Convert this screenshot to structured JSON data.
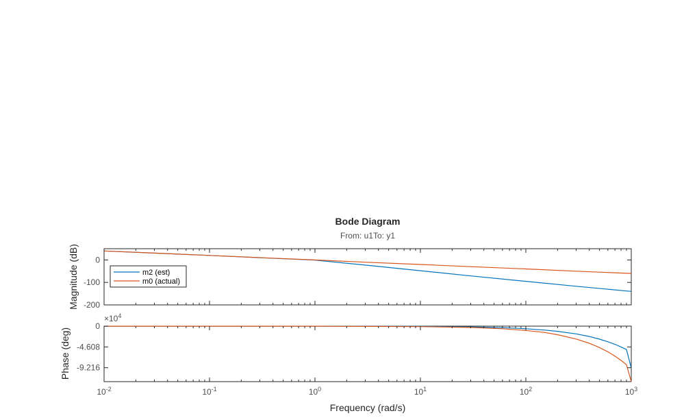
{
  "chart_data": {
    "type": "line",
    "title": "Bode Diagram",
    "subtitle": {
      "from_label": "From: u1",
      "to_label": "To: y1"
    },
    "xlabel": "Frequency (rad/s)",
    "xscale": "log",
    "xlim": [
      0.01,
      1000
    ],
    "x_ticks": [
      {
        "value": 0.01,
        "base": "10",
        "exp": "-2"
      },
      {
        "value": 0.1,
        "base": "10",
        "exp": "-1"
      },
      {
        "value": 1,
        "base": "10",
        "exp": "0"
      },
      {
        "value": 10,
        "base": "10",
        "exp": "1"
      },
      {
        "value": 100,
        "base": "10",
        "exp": "2"
      },
      {
        "value": 1000,
        "base": "10",
        "exp": "3"
      }
    ],
    "grid": false,
    "legend_placement": "lower-left of magnitude plot",
    "magnitude": {
      "ylabel": "Magnitude (dB)",
      "ylim": [
        -200,
        50
      ],
      "y_ticks": [
        {
          "value": 0,
          "label": "0"
        },
        {
          "value": -100,
          "label": "-100"
        },
        {
          "value": -200,
          "label": "-200"
        }
      ],
      "series": [
        {
          "name": "m2 (est)",
          "color": "#0072BD",
          "x": [
            0.01,
            0.03,
            0.1,
            0.3,
            1,
            3,
            10,
            30,
            100,
            300,
            1000
          ],
          "y": [
            40,
            30.5,
            20,
            10,
            -1,
            -23,
            -48,
            -71,
            -95,
            -117,
            -140
          ]
        },
        {
          "name": "m0 (actual)",
          "color": "#D95319",
          "x": [
            0.01,
            0.03,
            0.1,
            0.3,
            1,
            3,
            10,
            30,
            100,
            300,
            1000
          ],
          "y": [
            40,
            30.5,
            20,
            10.5,
            0,
            -10,
            -20,
            -30,
            -40,
            -50,
            -60
          ]
        }
      ]
    },
    "phase": {
      "ylabel": "Phase (deg)",
      "ylim": [
        -123000,
        0
      ],
      "y_multiplier": {
        "base": "×10",
        "exp": "4"
      },
      "y_ticks": [
        {
          "value": 0,
          "label": "0"
        },
        {
          "value": -46080,
          "label": "-4.608"
        },
        {
          "value": -92160,
          "label": "-9.216"
        }
      ],
      "series": [
        {
          "name": "m2 (est)",
          "color": "#0072BD",
          "x": [
            0.01,
            0.1,
            1,
            10,
            30,
            60,
            100,
            150,
            200,
            300,
            400,
            500,
            600,
            700,
            800,
            900,
            1000
          ],
          "y": [
            -90,
            -90,
            -100,
            -600,
            -1700,
            -3400,
            -5700,
            -8600,
            -11500,
            -17200,
            -23000,
            -28800,
            -34600,
            -40300,
            -46100,
            -51900,
            -93000
          ]
        },
        {
          "name": "m0 (actual)",
          "color": "#D95319",
          "x": [
            0.01,
            0.1,
            1,
            10,
            30,
            60,
            100,
            150,
            200,
            300,
            400,
            500,
            600,
            700,
            800,
            900,
            1000
          ],
          "y": [
            -90,
            -90,
            -150,
            -1000,
            -2900,
            -5800,
            -9500,
            -14000,
            -19000,
            -28500,
            -38000,
            -47500,
            -57000,
            -66500,
            -76000,
            -85500,
            -123000
          ]
        }
      ]
    }
  }
}
